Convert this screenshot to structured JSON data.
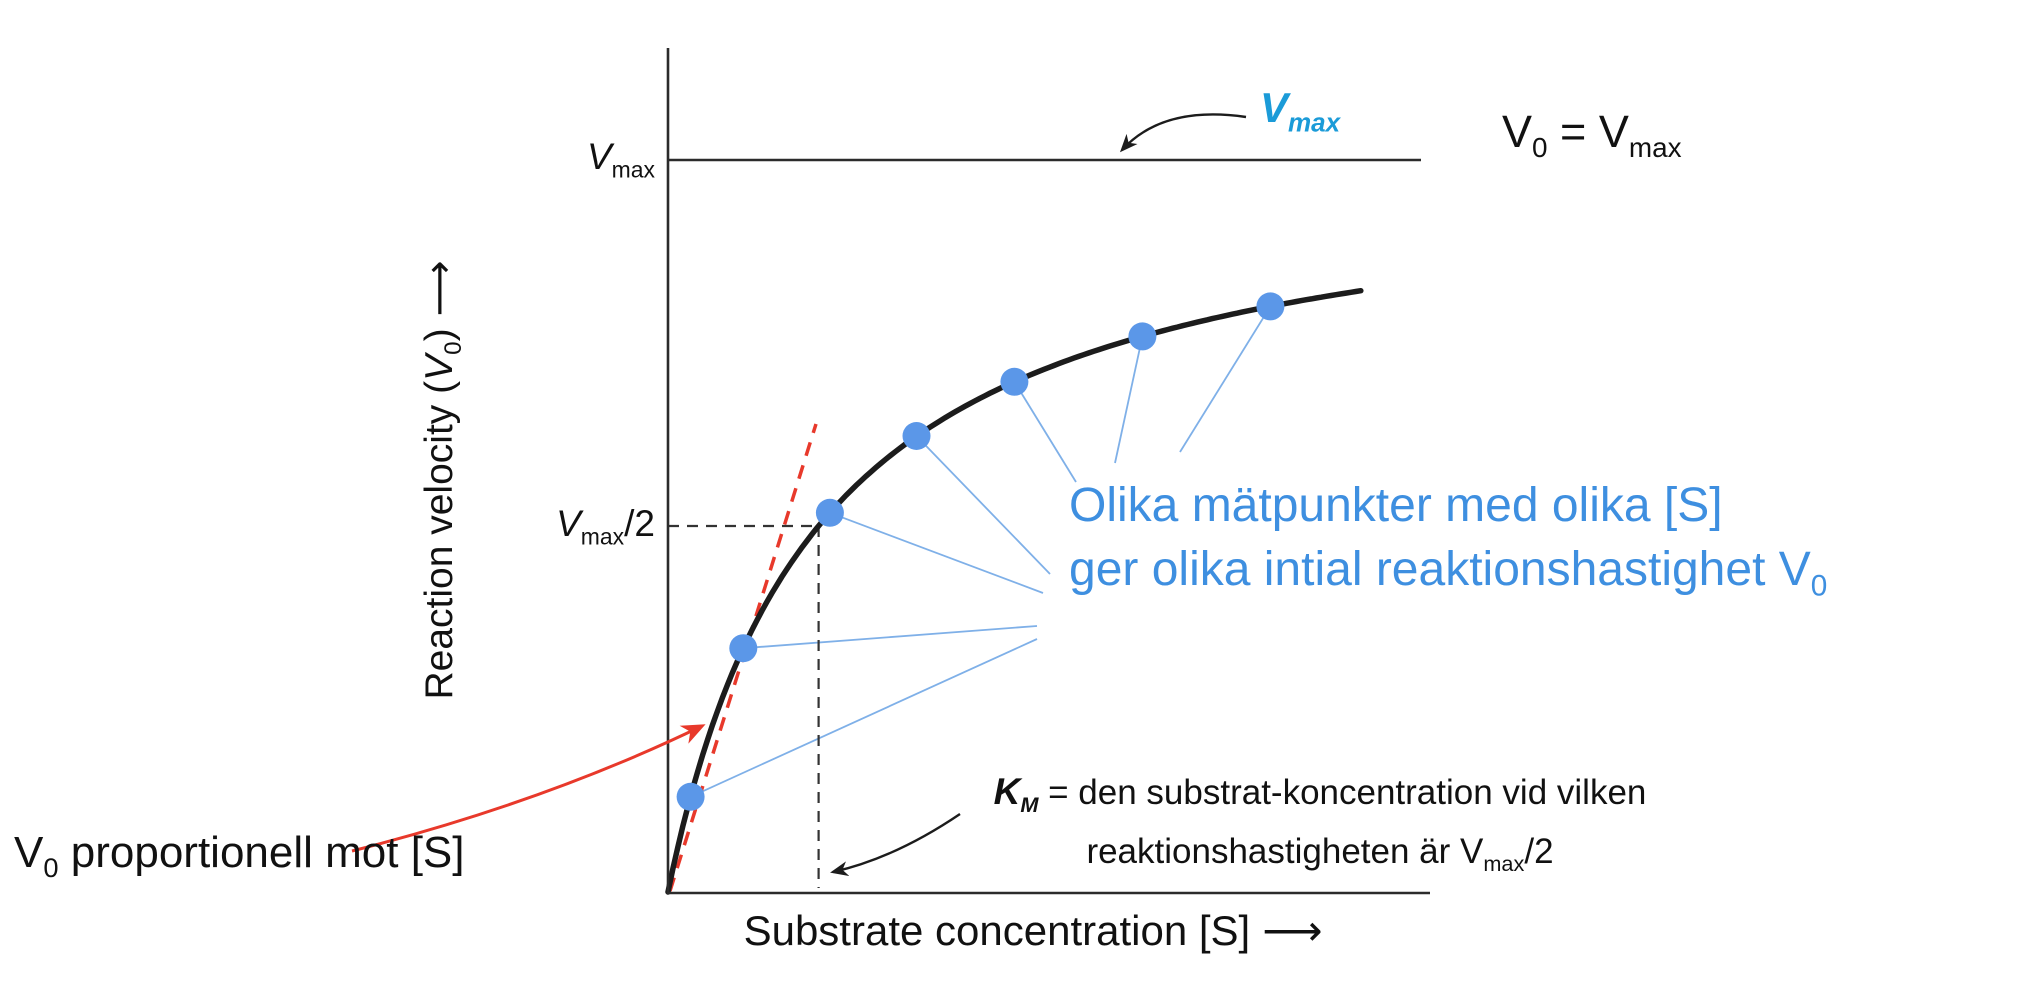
{
  "colors": {
    "curve": "#1c1c1c",
    "axis": "#2b2b2b",
    "dashed_guide": "#333333",
    "point_blue": "#5b97e8",
    "connector_blue": "#7fb0e8",
    "note_blue": "#3e8fe0",
    "vmax_callout_blue": "#1b9bd8",
    "red": "#e8392b"
  },
  "axes": {
    "y_title_pre": "Reaction velocity (",
    "y_title_v": "V",
    "y_title_sub": "0",
    "y_title_close": ")",
    "y_arrow": "⟶",
    "x_title": "Substrate concentration [S]",
    "x_arrow": "⟶"
  },
  "ticks": {
    "vmax_v": "V",
    "vmax_sub": "max",
    "half_v": "V",
    "half_sub": "max",
    "half_suffix": "/2"
  },
  "annotations": {
    "vmax_callout_v": "V",
    "vmax_callout_sub": "max",
    "v0_eq_v": "V",
    "v0_eq_sub": "0",
    "v0_eq_mid": " = V",
    "v0_eq_sub2": "max",
    "blue_line1": "Olika mätpunkter med olika [S]",
    "blue_line2_pre": "ger olika intial reaktionshastighet V",
    "blue_line2_sub": "0",
    "km_k": "K",
    "km_k_sub": "M",
    "km_line1_rest": " = den substrat-koncentration vid vilken",
    "km_line2_pre": "reaktionshastigheten är V",
    "km_line2_sub": "max",
    "km_line2_suffix": "/2",
    "v0_prop_v": "V",
    "v0_prop_sub": "0",
    "v0_prop_rest": " proportionell mot [S]"
  },
  "chart_data": {
    "type": "line",
    "model": "Michaelis-Menten saturation curve: V0 = Vmax·[S]/(KM+[S])",
    "xlabel": "Substrate concentration [S]",
    "ylabel": "Reaction velocity (V0)",
    "x_axis_numeric_labels": false,
    "y_tick_labels": [
      "Vmax",
      "Vmax/2"
    ],
    "vmax_normalized": 1,
    "km_normalized": 0.2,
    "curve_s_range": [
      0,
      0.92
    ],
    "dashed_guides": {
      "v_half": 0.5,
      "s_km": 0.2
    },
    "points": {
      "s": [
        0.03,
        0.1,
        0.215,
        0.33,
        0.46,
        0.63,
        0.8
      ],
      "v": [
        0.13,
        0.333,
        0.518,
        0.623,
        0.697,
        0.759,
        0.8
      ]
    },
    "gridlines": false,
    "legend": false
  }
}
